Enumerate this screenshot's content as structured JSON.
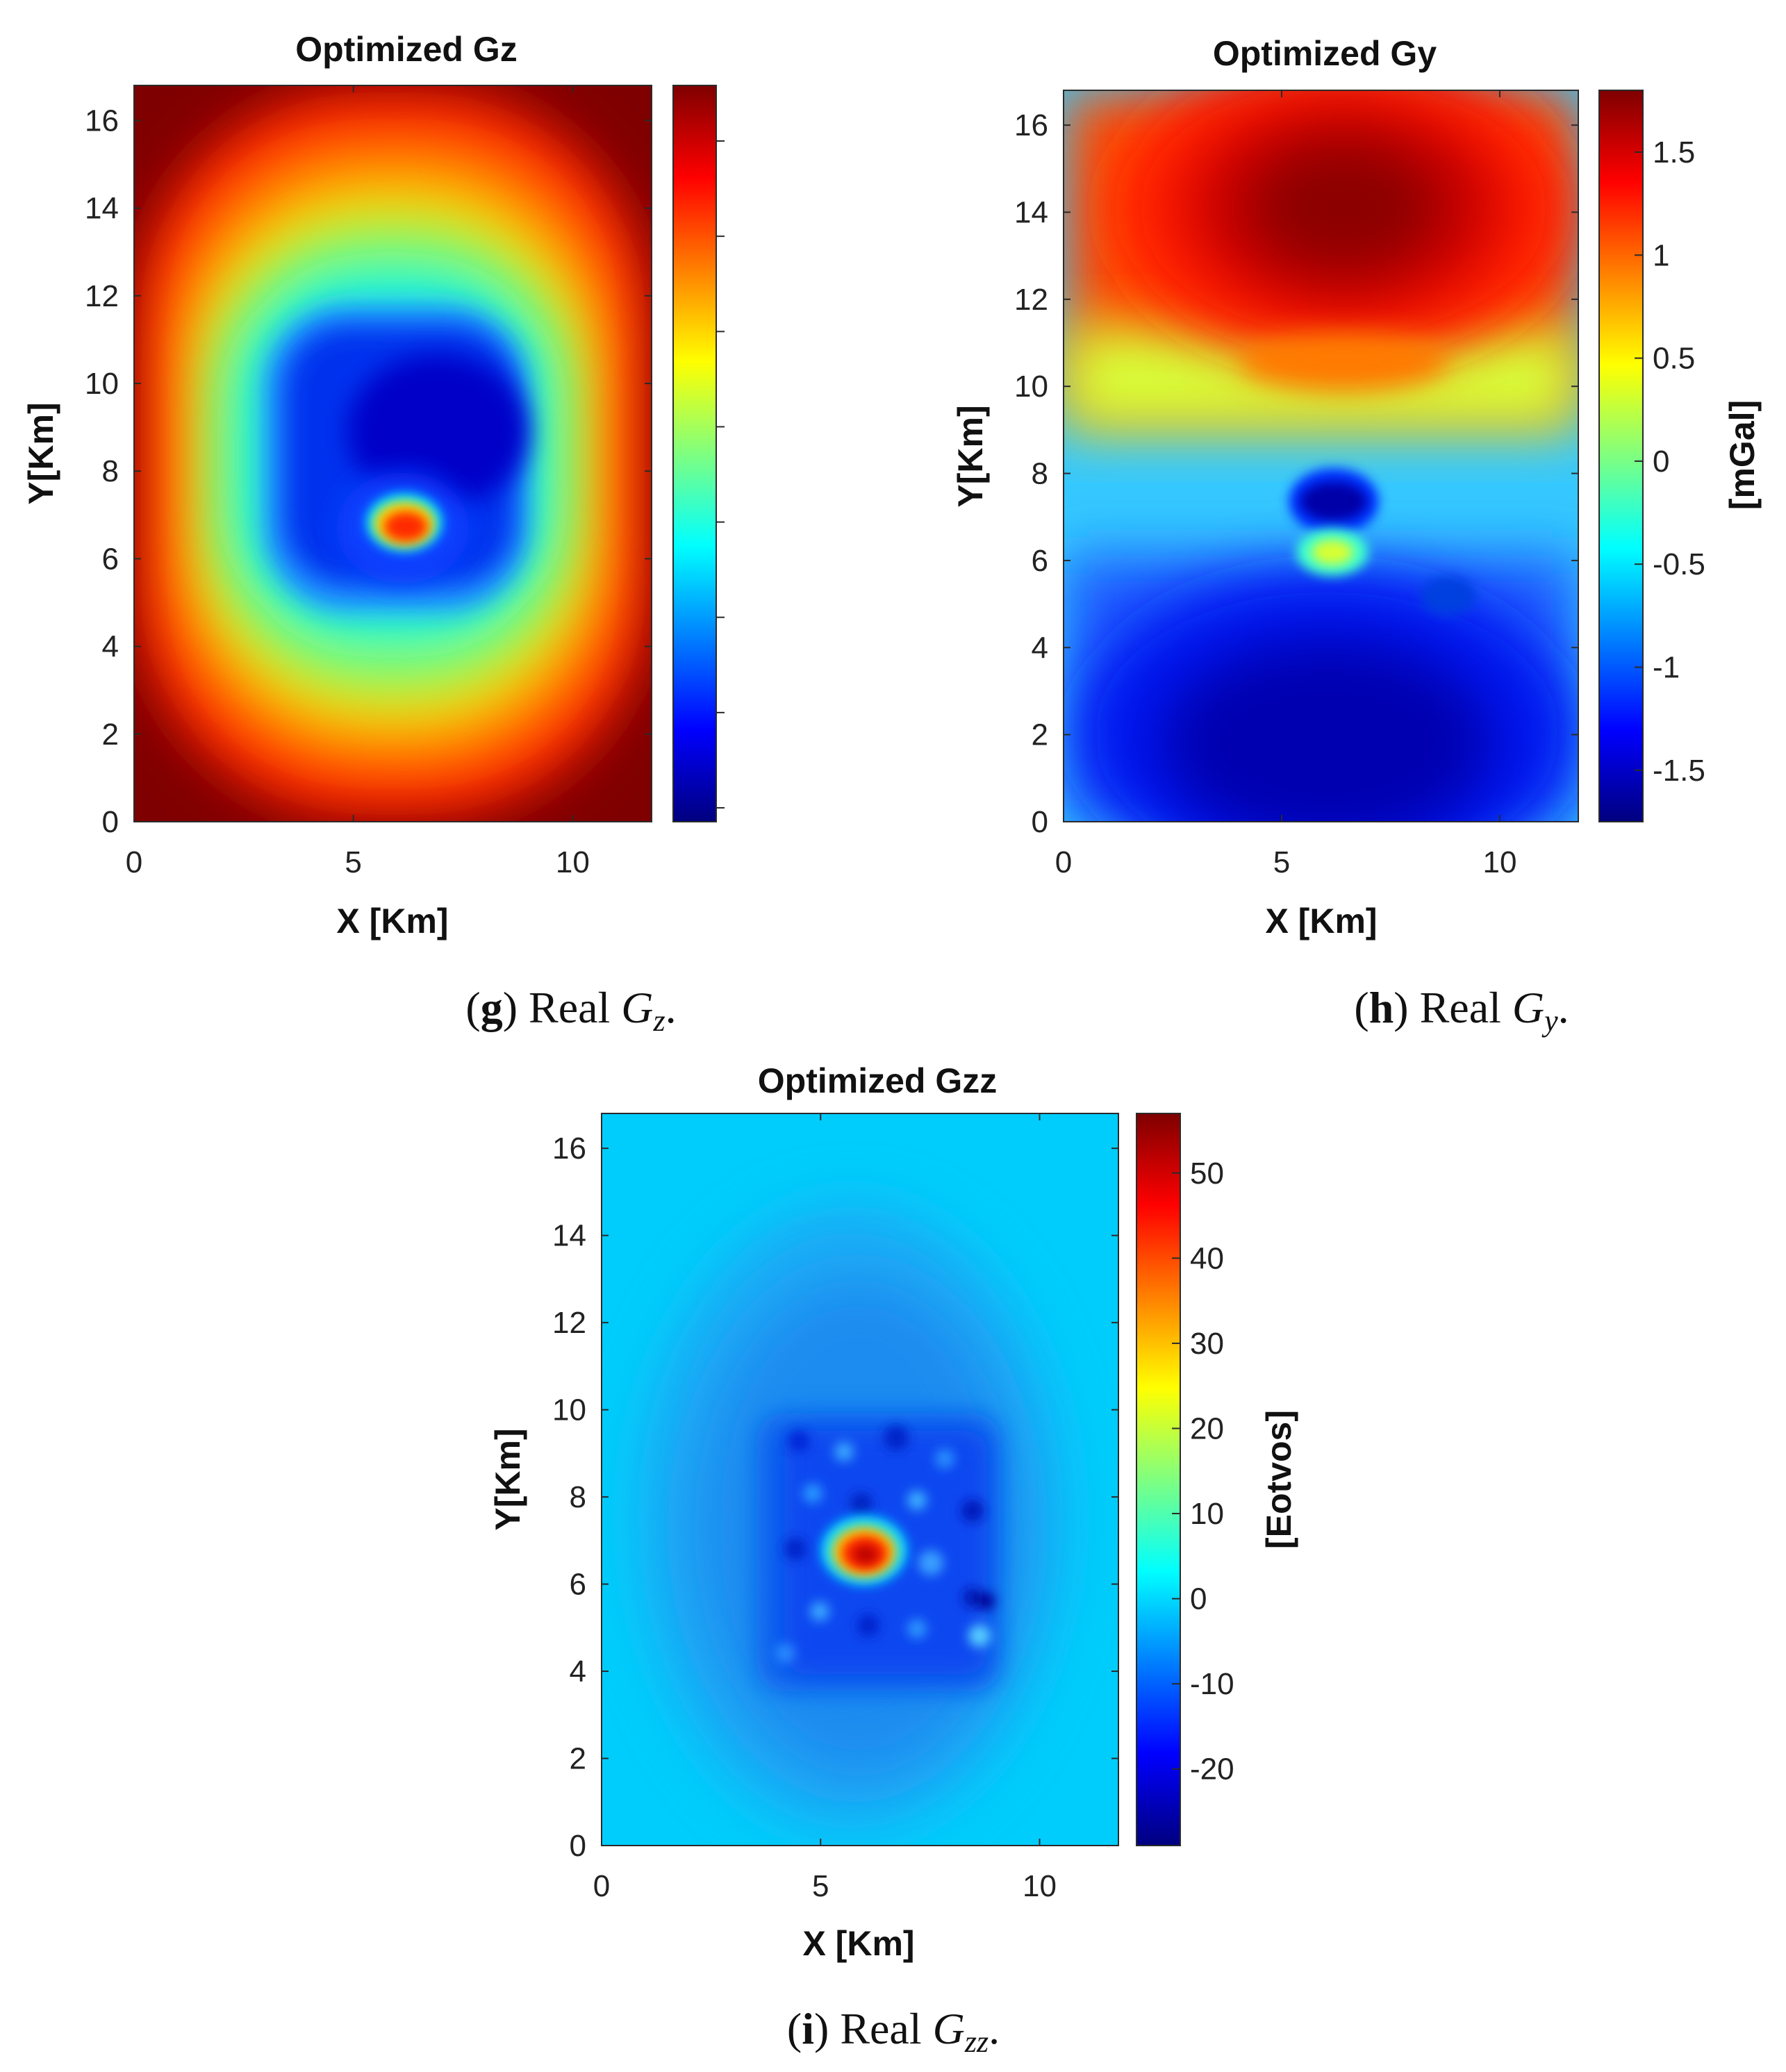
{
  "colors": {
    "jet": [
      "#00007f",
      "#0000ff",
      "#007fff",
      "#00ffff",
      "#7fff7f",
      "#ffff00",
      "#ff7f00",
      "#ff0000",
      "#7f0000"
    ],
    "text": "#111111"
  },
  "chart_data": [
    {
      "type": "heatmap",
      "title": "Optimized Gz",
      "xlabel": "X [Km]",
      "ylabel": "Y[Km]",
      "xlim": [
        0,
        11.8
      ],
      "ylim": [
        0,
        16.8
      ],
      "xticks": [
        "0",
        "5",
        "10"
      ],
      "xtick_values": [
        0,
        5,
        10
      ],
      "yticks": [
        "0",
        "2",
        "4",
        "6",
        "8",
        "10",
        "12",
        "14",
        "16"
      ],
      "ytick_values": [
        0,
        2,
        4,
        6,
        8,
        10,
        12,
        14,
        16
      ],
      "colorbar": {
        "label": "",
        "ticks": [],
        "tick_values": [],
        "range": [
          0,
          1
        ],
        "minor_tick_count": 8
      },
      "caption": {
        "letter": "g",
        "text": "Real",
        "symbol": "G",
        "subscript": "z"
      },
      "features": [
        {
          "desc": "background",
          "value": 0.88
        },
        {
          "desc": "central low",
          "center": [
            6.2,
            7.8
          ],
          "value": 0.05
        },
        {
          "desc": "local peak",
          "center": [
            6.1,
            6.7
          ],
          "value": 0.82
        }
      ]
    },
    {
      "type": "heatmap",
      "title": "Optimized Gy",
      "xlabel": "X [Km]",
      "ylabel": "Y[Km]",
      "xlim": [
        0,
        11.8
      ],
      "ylim": [
        0,
        16.8
      ],
      "xticks": [
        "0",
        "5",
        "10"
      ],
      "xtick_values": [
        0,
        5,
        10
      ],
      "yticks": [
        "0",
        "2",
        "4",
        "6",
        "8",
        "10",
        "12",
        "14",
        "16"
      ],
      "ytick_values": [
        0,
        2,
        4,
        6,
        8,
        10,
        12,
        14,
        16
      ],
      "colorbar": {
        "label": "[mGal]",
        "ticks": [
          "-1.5",
          "-1",
          "-0.5",
          "0",
          "0.5",
          "1",
          "1.5"
        ],
        "tick_values": [
          -1.5,
          -1,
          -0.5,
          0,
          0.5,
          1,
          1.5
        ],
        "range": [
          -1.75,
          1.8
        ]
      },
      "caption": {
        "letter": "h",
        "text": "Real",
        "symbol": "G",
        "subscript": "y"
      },
      "features": [
        {
          "desc": "maximum",
          "center": [
            6.5,
            14.0
          ],
          "value": 1.8
        },
        {
          "desc": "minimum",
          "center": [
            6.0,
            2.0
          ],
          "value": -1.7
        },
        {
          "desc": "local low",
          "center": [
            6.1,
            7.4
          ],
          "value": -1.4
        },
        {
          "desc": "local high",
          "center": [
            6.1,
            6.2
          ],
          "value": 0.3
        }
      ]
    },
    {
      "type": "heatmap",
      "title": "Optimized Gzz",
      "xlabel": "X [Km]",
      "ylabel": "Y[Km]",
      "xlim": [
        0,
        11.8
      ],
      "ylim": [
        0,
        16.8
      ],
      "xticks": [
        "0",
        "5",
        "10"
      ],
      "xtick_values": [
        0,
        5,
        10
      ],
      "yticks": [
        "0",
        "2",
        "4",
        "6",
        "8",
        "10",
        "12",
        "14",
        "16"
      ],
      "ytick_values": [
        0,
        2,
        4,
        6,
        8,
        10,
        12,
        14,
        16
      ],
      "colorbar": {
        "label": "[Eotvos]",
        "ticks": [
          "-20",
          "-10",
          "0",
          "10",
          "20",
          "30",
          "40",
          "50"
        ],
        "tick_values": [
          -20,
          -10,
          0,
          10,
          20,
          30,
          40,
          50
        ],
        "range": [
          -29,
          57
        ]
      },
      "caption": {
        "letter": "i",
        "text": "Real",
        "symbol": "G",
        "subscript": "zz"
      },
      "features": [
        {
          "desc": "background",
          "value": 0
        },
        {
          "desc": "negative zone",
          "center": [
            6.2,
            6.5
          ],
          "value": -17
        },
        {
          "desc": "peak",
          "center": [
            6.0,
            6.7
          ],
          "value": 55
        }
      ]
    }
  ]
}
